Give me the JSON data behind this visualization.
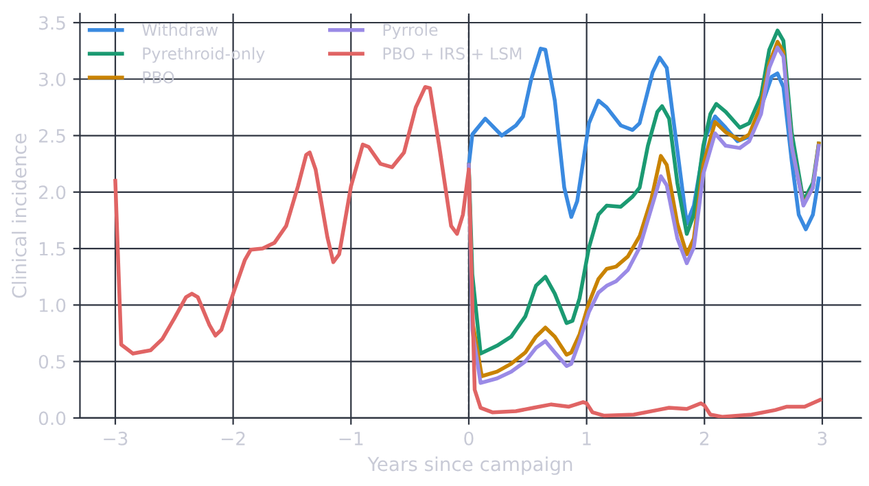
{
  "chart_data": {
    "type": "line",
    "xlabel": "Years since campaign",
    "ylabel": "Clinical incidence",
    "xlim": [
      -3.3,
      3.33
    ],
    "ylim": [
      0,
      3.58
    ],
    "xticks": [
      {
        "value": -3,
        "label": "−3"
      },
      {
        "value": -2,
        "label": "−2"
      },
      {
        "value": -1,
        "label": "−1"
      },
      0,
      1,
      2,
      3
    ],
    "yticks": [
      {
        "value": 0,
        "label": "0.0"
      },
      0.5,
      {
        "value": 1,
        "label": "1.0"
      },
      1.5,
      {
        "value": 2,
        "label": "2.0"
      },
      2.5,
      {
        "value": 3,
        "label": "3.0"
      },
      3.5
    ],
    "grid": true,
    "legend": "top left",
    "line_style": "solid",
    "marker": "none",
    "ref_lines": [
      {
        "axis": "x",
        "value": 0,
        "color": "#2e3440",
        "line_style": "dashed"
      }
    ],
    "series": [
      {
        "name": "Withdraw",
        "color": "#3a8ae0",
        "x": [
          0,
          0.03,
          0.14,
          0.28,
          0.4,
          0.46,
          0.53,
          0.61,
          0.65,
          0.73,
          0.81,
          0.87,
          0.92,
          1.02,
          1.1,
          1.17,
          1.29,
          1.39,
          1.45,
          1.56,
          1.62,
          1.68,
          1.77,
          1.85,
          1.91,
          2.01,
          2.09,
          2.18,
          2.28,
          2.38,
          2.5,
          2.57,
          2.62,
          2.67,
          2.74,
          2.8,
          2.86,
          2.92,
          2.97
        ],
        "values": [
          2.24,
          2.51,
          2.65,
          2.5,
          2.59,
          2.67,
          3.0,
          3.27,
          3.26,
          2.81,
          2.04,
          1.78,
          1.92,
          2.61,
          2.81,
          2.75,
          2.59,
          2.55,
          2.61,
          3.06,
          3.19,
          3.1,
          2.37,
          1.72,
          1.88,
          2.49,
          2.67,
          2.57,
          2.45,
          2.49,
          2.81,
          3.02,
          3.05,
          2.93,
          2.28,
          1.8,
          1.67,
          1.8,
          2.12
        ]
      },
      {
        "name": "Pyrethroid-only",
        "color": "#1b9a72",
        "x": [
          0,
          0.03,
          0.1,
          0.24,
          0.36,
          0.48,
          0.57,
          0.65,
          0.73,
          0.83,
          0.88,
          0.94,
          1.02,
          1.1,
          1.17,
          1.29,
          1.39,
          1.45,
          1.52,
          1.6,
          1.64,
          1.7,
          1.77,
          1.85,
          1.91,
          1.99,
          2.05,
          2.1,
          2.18,
          2.3,
          2.38,
          2.48,
          2.55,
          2.62,
          2.67,
          2.74,
          2.84,
          2.92,
          2.97
        ],
        "values": [
          2.24,
          1.27,
          0.57,
          0.64,
          0.72,
          0.9,
          1.17,
          1.25,
          1.1,
          0.84,
          0.86,
          1.06,
          1.51,
          1.8,
          1.88,
          1.87,
          1.96,
          2.04,
          2.41,
          2.71,
          2.76,
          2.65,
          2.08,
          1.63,
          1.8,
          2.41,
          2.69,
          2.78,
          2.71,
          2.57,
          2.61,
          2.85,
          3.26,
          3.43,
          3.34,
          2.53,
          1.92,
          2.08,
          2.43
        ]
      },
      {
        "name": "PBO",
        "color": "#c98300",
        "x": [
          0,
          0.03,
          0.11,
          0.24,
          0.36,
          0.48,
          0.57,
          0.65,
          0.73,
          0.83,
          0.87,
          0.94,
          1.02,
          1.1,
          1.17,
          1.25,
          1.35,
          1.45,
          1.55,
          1.63,
          1.68,
          1.77,
          1.85,
          1.91,
          1.99,
          2.09,
          2.18,
          2.3,
          2.38,
          2.48,
          2.55,
          2.62,
          2.67,
          2.74,
          2.84,
          2.92,
          2.97
        ],
        "values": [
          2.24,
          0.86,
          0.37,
          0.41,
          0.48,
          0.58,
          0.72,
          0.8,
          0.72,
          0.56,
          0.58,
          0.74,
          1.02,
          1.23,
          1.32,
          1.34,
          1.43,
          1.61,
          1.94,
          2.32,
          2.24,
          1.72,
          1.45,
          1.59,
          2.24,
          2.62,
          2.53,
          2.46,
          2.51,
          2.77,
          3.14,
          3.33,
          3.24,
          2.41,
          1.89,
          2.04,
          2.43
        ]
      },
      {
        "name": "Pyrrole",
        "color": "#9a8ae6",
        "x": [
          0,
          0.03,
          0.1,
          0.24,
          0.36,
          0.48,
          0.57,
          0.65,
          0.73,
          0.83,
          0.87,
          0.94,
          1.02,
          1.1,
          1.17,
          1.25,
          1.35,
          1.45,
          1.55,
          1.63,
          1.68,
          1.77,
          1.85,
          1.91,
          1.99,
          2.09,
          2.18,
          2.3,
          2.38,
          2.48,
          2.55,
          2.62,
          2.67,
          2.74,
          2.84,
          2.92,
          2.97
        ],
        "values": [
          2.24,
          0.78,
          0.31,
          0.35,
          0.41,
          0.5,
          0.62,
          0.68,
          0.58,
          0.46,
          0.48,
          0.68,
          0.94,
          1.11,
          1.17,
          1.21,
          1.31,
          1.51,
          1.86,
          2.14,
          2.06,
          1.59,
          1.37,
          1.51,
          2.16,
          2.52,
          2.41,
          2.39,
          2.45,
          2.69,
          3.1,
          3.28,
          3.2,
          2.41,
          1.88,
          2.04,
          2.41
        ]
      },
      {
        "name": "PBO + IRS + LSM",
        "color": "#e06464",
        "x": [
          -3,
          -2.95,
          -2.85,
          -2.7,
          -2.6,
          -2.5,
          -2.4,
          -2.35,
          -2.3,
          -2.2,
          -2.15,
          -2.1,
          -2.0,
          -1.9,
          -1.85,
          -1.75,
          -1.65,
          -1.55,
          -1.45,
          -1.38,
          -1.35,
          -1.3,
          -1.2,
          -1.15,
          -1.1,
          -1.0,
          -0.9,
          -0.85,
          -0.75,
          -0.65,
          -0.55,
          -0.45,
          -0.37,
          -0.33,
          -0.25,
          -0.15,
          -0.1,
          -0.05,
          0,
          0.05,
          0.1,
          0.2,
          0.4,
          0.55,
          0.7,
          0.85,
          0.97,
          1.0,
          1.05,
          1.15,
          1.4,
          1.6,
          1.7,
          1.85,
          1.97,
          2.0,
          2.05,
          2.15,
          2.4,
          2.6,
          2.7,
          2.85,
          2.98
        ],
        "values": [
          2.1,
          0.65,
          0.57,
          0.6,
          0.7,
          0.88,
          1.07,
          1.1,
          1.07,
          0.82,
          0.73,
          0.78,
          1.1,
          1.4,
          1.49,
          1.5,
          1.55,
          1.7,
          2.05,
          2.33,
          2.35,
          2.2,
          1.6,
          1.38,
          1.45,
          2.05,
          2.42,
          2.4,
          2.25,
          2.22,
          2.35,
          2.75,
          2.93,
          2.92,
          2.4,
          1.7,
          1.63,
          1.8,
          2.2,
          0.25,
          0.09,
          0.05,
          0.06,
          0.09,
          0.12,
          0.1,
          0.14,
          0.13,
          0.05,
          0.02,
          0.03,
          0.07,
          0.09,
          0.08,
          0.13,
          0.11,
          0.03,
          0.01,
          0.03,
          0.07,
          0.1,
          0.1,
          0.16
        ]
      }
    ]
  }
}
